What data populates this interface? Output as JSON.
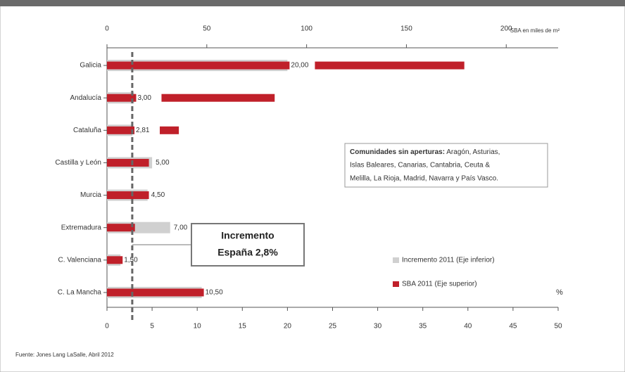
{
  "chart_data": {
    "type": "bar",
    "orientation": "horizontal",
    "categories": [
      "Galicia",
      "Andalucía",
      "Cataluña",
      "Castilla y León",
      "Murcia",
      "Extremadura",
      "C. Valenciana",
      "C. La Mancha"
    ],
    "series": [
      {
        "name": "Incremento 2011 (Eje inferior)",
        "color": "#d0d0d0",
        "axis": "x",
        "values": [
          20,
          3,
          2.81,
          5,
          4.5,
          7,
          1.5,
          10.5
        ],
        "value_labels": [
          "20,00",
          "3,00",
          "2,81",
          "5,00",
          "4,50",
          "7,00",
          "1,50",
          "10,50"
        ]
      },
      {
        "name": "SBA 2011 (Eje superior)",
        "color": "#c0202a",
        "axis": "x2",
        "values": [
          179,
          84,
          36,
          21,
          21,
          14,
          8,
          55
        ]
      }
    ],
    "xlim": [
      0,
      50
    ],
    "xticks": [
      0,
      5,
      10,
      15,
      20,
      25,
      30,
      35,
      40,
      45,
      50
    ],
    "xlabel": "%",
    "x2lim": [
      0,
      226
    ],
    "x2ticks": [
      0,
      50,
      100,
      150,
      200
    ],
    "x2label": "SBA en miles de m²",
    "reference_line": {
      "value": 2.8,
      "label": [
        "Incremento",
        "España 2,8%"
      ]
    },
    "note": {
      "title": "Comunidades sin aperturas:",
      "lines": [
        " Aragón, Asturias,",
        "Islas Baleares, Canarias, Cantabria, Ceuta &",
        "Melilla, La Rioja, Madrid, Navarra y País Vasco."
      ]
    },
    "source": "Fuente: Jones Lang LaSalle, Abril 2012",
    "legend": "lower right"
  }
}
